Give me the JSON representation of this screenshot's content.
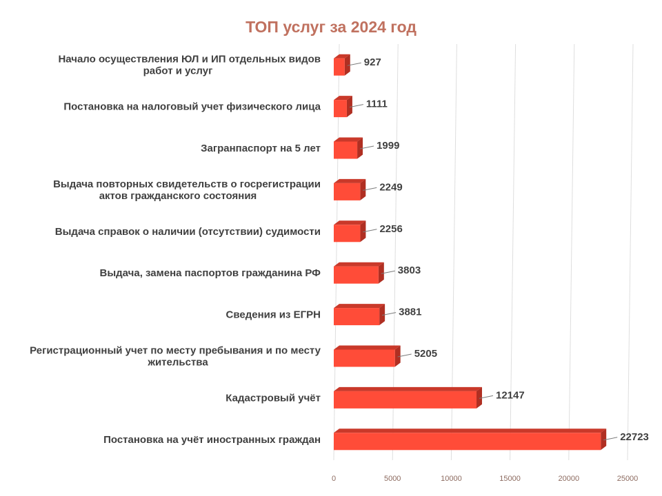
{
  "chart_data": {
    "type": "bar",
    "orientation": "horizontal",
    "style": "3d",
    "title": "ТОП услуг за 2024 год",
    "categories": [
      [
        "Начало осуществления ЮЛ и ИП отдельных видов",
        "работ и услуг"
      ],
      [
        "Постановка на налоговый учет физического лица"
      ],
      [
        "Загранпаспорт на 5 лет"
      ],
      [
        "Выдача повторных свидетельств о госрегистрации",
        "актов гражданского состояния"
      ],
      [
        "Выдача справок о наличии (отсутствии) судимости"
      ],
      [
        "Выдача, замена паспортов гражданина РФ"
      ],
      [
        "Сведения из ЕГРН"
      ],
      [
        "Регистрационный учет по месту пребывания и по месту",
        "жительства"
      ],
      [
        "Кадастровый учёт"
      ],
      [
        "Постановка на учёт иностранных граждан"
      ]
    ],
    "values": [
      927,
      1111,
      1999,
      2249,
      2256,
      3803,
      3881,
      5205,
      12147,
      22723
    ],
    "value_labels": [
      "927",
      "1111",
      "1999",
      "2249",
      "2256",
      "3803",
      "3881",
      "5205",
      "12147",
      "22723"
    ],
    "xlim": [
      0,
      25000
    ],
    "xticks": [
      0,
      5000,
      10000,
      15000,
      20000,
      25000
    ],
    "xtick_labels": [
      "0",
      "5000",
      "10000",
      "15000",
      "20000",
      "25000"
    ],
    "grid": "vertical",
    "legend": "none",
    "colors": {
      "bar_front": "#ff4c38",
      "bar_top": "#c9392a",
      "bar_side": "#b02f22",
      "title": "#c0715f",
      "text": "#404040",
      "grid": "#dedede",
      "tick": "#8c6a5f"
    }
  }
}
